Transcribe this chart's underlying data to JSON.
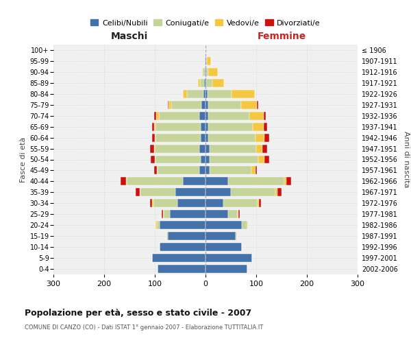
{
  "age_groups": [
    "100+",
    "95-99",
    "90-94",
    "85-89",
    "80-84",
    "75-79",
    "70-74",
    "65-69",
    "60-64",
    "55-59",
    "50-54",
    "45-49",
    "40-44",
    "35-39",
    "30-34",
    "25-29",
    "20-24",
    "15-19",
    "10-14",
    "5-9",
    "0-4"
  ],
  "birth_years": [
    "≤ 1906",
    "1907-1911",
    "1912-1916",
    "1917-1921",
    "1922-1926",
    "1927-1931",
    "1932-1936",
    "1937-1941",
    "1942-1946",
    "1947-1951",
    "1952-1956",
    "1957-1961",
    "1962-1966",
    "1967-1971",
    "1972-1976",
    "1977-1981",
    "1982-1986",
    "1987-1991",
    "1992-1996",
    "1997-2001",
    "2002-2006"
  ],
  "maschi": {
    "celibi": [
      0,
      1,
      2,
      3,
      4,
      8,
      12,
      10,
      10,
      12,
      10,
      12,
      45,
      60,
      55,
      70,
      90,
      75,
      90,
      105,
      95
    ],
    "coniugati": [
      0,
      0,
      3,
      8,
      32,
      60,
      80,
      88,
      88,
      88,
      88,
      82,
      110,
      68,
      48,
      12,
      6,
      2,
      0,
      0,
      0
    ],
    "vedovi": [
      0,
      0,
      2,
      4,
      8,
      5,
      5,
      3,
      2,
      2,
      2,
      2,
      2,
      2,
      2,
      2,
      2,
      0,
      0,
      0,
      0
    ],
    "divorziati": [
      0,
      0,
      0,
      0,
      0,
      2,
      5,
      5,
      5,
      8,
      8,
      5,
      10,
      8,
      5,
      2,
      0,
      0,
      0,
      0,
      0
    ]
  },
  "femmine": {
    "nubili": [
      0,
      1,
      2,
      2,
      4,
      5,
      5,
      5,
      6,
      8,
      8,
      8,
      45,
      50,
      35,
      45,
      72,
      60,
      72,
      92,
      82
    ],
    "coniugate": [
      0,
      2,
      4,
      12,
      48,
      65,
      82,
      88,
      92,
      92,
      96,
      82,
      110,
      88,
      68,
      18,
      10,
      2,
      0,
      0,
      0
    ],
    "vedove": [
      0,
      8,
      18,
      22,
      45,
      32,
      28,
      22,
      18,
      12,
      12,
      8,
      4,
      4,
      2,
      2,
      2,
      0,
      0,
      0,
      0
    ],
    "divorziate": [
      0,
      0,
      0,
      0,
      0,
      2,
      4,
      7,
      9,
      9,
      9,
      4,
      10,
      8,
      4,
      2,
      0,
      0,
      0,
      0,
      0
    ]
  },
  "colors": {
    "celibi": "#4472a8",
    "coniugati": "#c4d49a",
    "vedovi": "#f5c842",
    "divorziati": "#cc1111"
  },
  "xlim": 300,
  "title": "Popolazione per età, sesso e stato civile - 2007",
  "subtitle": "COMUNE DI CANZO (CO) - Dati ISTAT 1° gennaio 2007 - Elaborazione TUTTITALIA.IT",
  "xlabel_left": "Maschi",
  "xlabel_right": "Femmine",
  "ylabel_left": "Fasce di età",
  "ylabel_right": "Anni di nascita",
  "legend_labels": [
    "Celibi/Nubili",
    "Coniugati/e",
    "Vedovi/e",
    "Divorziati/e"
  ],
  "background_color": "#ffffff",
  "grid_color": "#cccccc"
}
